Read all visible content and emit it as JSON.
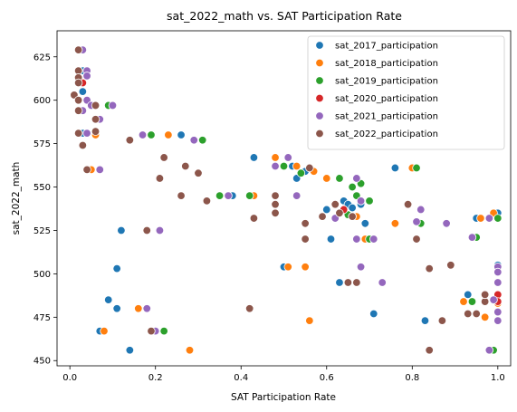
{
  "chart_data": {
    "type": "scatter",
    "title": "sat_2022_math vs. SAT Participation Rate",
    "xlabel": "SAT Participation Rate",
    "ylabel": "sat_2022_math",
    "xlim": [
      -0.03,
      1.03
    ],
    "ylim": [
      447,
      640
    ],
    "xticks": [
      0.0,
      0.2,
      0.4,
      0.6,
      0.8,
      1.0
    ],
    "xtick_labels": [
      "0.0",
      "0.2",
      "0.4",
      "0.6",
      "0.8",
      "1.0"
    ],
    "yticks": [
      450,
      475,
      500,
      525,
      550,
      575,
      600,
      625
    ],
    "ytick_labels": [
      "450",
      "475",
      "500",
      "525",
      "550",
      "575",
      "600",
      "625"
    ],
    "grid": false,
    "legend_position": "top-right",
    "series": [
      {
        "name": "sat_2017_participation",
        "color": "#1f77b4",
        "points": [
          [
            0.02,
            629
          ],
          [
            0.03,
            617
          ],
          [
            0.02,
            613
          ],
          [
            0.03,
            610
          ],
          [
            0.03,
            605
          ],
          [
            0.02,
            594
          ],
          [
            0.03,
            581
          ],
          [
            0.05,
            560
          ],
          [
            0.07,
            467
          ],
          [
            0.09,
            485
          ],
          [
            0.11,
            480
          ],
          [
            0.11,
            503
          ],
          [
            0.12,
            525
          ],
          [
            0.14,
            456
          ],
          [
            0.26,
            580
          ],
          [
            0.38,
            545
          ],
          [
            0.43,
            567
          ],
          [
            0.5,
            504
          ],
          [
            0.52,
            562
          ],
          [
            0.53,
            555
          ],
          [
            0.55,
            559
          ],
          [
            0.6,
            537
          ],
          [
            0.63,
            495
          ],
          [
            0.61,
            520
          ],
          [
            0.64,
            542
          ],
          [
            0.65,
            534
          ],
          [
            0.65,
            540
          ],
          [
            0.66,
            538
          ],
          [
            0.68,
            540
          ],
          [
            0.69,
            529
          ],
          [
            0.71,
            477
          ],
          [
            0.76,
            561
          ],
          [
            0.83,
            473
          ],
          [
            0.93,
            488
          ],
          [
            0.95,
            532
          ],
          [
            1.0,
            535
          ],
          [
            1.0,
            483
          ],
          [
            1.0,
            505
          ]
        ]
      },
      {
        "name": "sat_2018_participation",
        "color": "#ff7f0e",
        "points": [
          [
            0.03,
            574
          ],
          [
            0.04,
            600
          ],
          [
            0.05,
            560
          ],
          [
            0.06,
            580
          ],
          [
            0.08,
            467
          ],
          [
            0.16,
            480
          ],
          [
            0.23,
            580
          ],
          [
            0.28,
            456
          ],
          [
            0.43,
            545
          ],
          [
            0.48,
            567
          ],
          [
            0.51,
            504
          ],
          [
            0.53,
            562
          ],
          [
            0.55,
            504
          ],
          [
            0.56,
            473
          ],
          [
            0.57,
            559
          ],
          [
            0.6,
            555
          ],
          [
            0.64,
            537
          ],
          [
            0.65,
            495
          ],
          [
            0.67,
            533
          ],
          [
            0.69,
            520
          ],
          [
            0.76,
            529
          ],
          [
            0.8,
            561
          ],
          [
            0.92,
            484
          ],
          [
            0.96,
            532
          ],
          [
            0.97,
            475
          ],
          [
            0.99,
            535
          ],
          [
            1.0,
            483
          ],
          [
            1.0,
            478
          ]
        ]
      },
      {
        "name": "sat_2019_participation",
        "color": "#2ca02c",
        "points": [
          [
            0.02,
            617
          ],
          [
            0.03,
            610
          ],
          [
            0.04,
            614
          ],
          [
            0.05,
            597
          ],
          [
            0.09,
            597
          ],
          [
            0.18,
            525
          ],
          [
            0.19,
            580
          ],
          [
            0.22,
            467
          ],
          [
            0.31,
            577
          ],
          [
            0.35,
            545
          ],
          [
            0.42,
            545
          ],
          [
            0.5,
            562
          ],
          [
            0.54,
            558
          ],
          [
            0.63,
            555
          ],
          [
            0.65,
            534
          ],
          [
            0.66,
            550
          ],
          [
            0.66,
            533
          ],
          [
            0.67,
            545
          ],
          [
            0.68,
            552
          ],
          [
            0.7,
            520
          ],
          [
            0.7,
            542
          ],
          [
            0.81,
            561
          ],
          [
            0.82,
            529
          ],
          [
            0.94,
            484
          ],
          [
            0.95,
            521
          ],
          [
            0.99,
            456
          ],
          [
            1.0,
            532
          ],
          [
            1.0,
            488
          ]
        ]
      },
      {
        "name": "sat_2020_participation",
        "color": "#d62728",
        "points": [
          [
            0.02,
            613
          ],
          [
            0.03,
            610
          ],
          [
            0.64,
            537
          ],
          [
            1.0,
            488
          ],
          [
            1.0,
            484
          ]
        ]
      },
      {
        "name": "sat_2021_participation",
        "color": "#9467bd",
        "points": [
          [
            0.03,
            629
          ],
          [
            0.04,
            617
          ],
          [
            0.04,
            614
          ],
          [
            0.04,
            600
          ],
          [
            0.03,
            594
          ],
          [
            0.05,
            597
          ],
          [
            0.07,
            589
          ],
          [
            0.04,
            581
          ],
          [
            0.07,
            560
          ],
          [
            0.1,
            597
          ],
          [
            0.17,
            580
          ],
          [
            0.18,
            480
          ],
          [
            0.2,
            467
          ],
          [
            0.21,
            525
          ],
          [
            0.29,
            577
          ],
          [
            0.37,
            545
          ],
          [
            0.48,
            562
          ],
          [
            0.51,
            567
          ],
          [
            0.53,
            545
          ],
          [
            0.62,
            532
          ],
          [
            0.67,
            555
          ],
          [
            0.67,
            520
          ],
          [
            0.68,
            504
          ],
          [
            0.68,
            542
          ],
          [
            0.71,
            520
          ],
          [
            0.73,
            495
          ],
          [
            0.81,
            530
          ],
          [
            0.82,
            537
          ],
          [
            0.88,
            529
          ],
          [
            0.94,
            521
          ],
          [
            0.98,
            532
          ],
          [
            0.98,
            456
          ],
          [
            1.0,
            504
          ],
          [
            1.0,
            501
          ],
          [
            1.0,
            495
          ],
          [
            1.0,
            478
          ],
          [
            1.0,
            473
          ],
          [
            0.99,
            485
          ]
        ]
      },
      {
        "name": "sat_2022_participation",
        "color": "#8c564b",
        "points": [
          [
            0.02,
            629
          ],
          [
            0.02,
            617
          ],
          [
            0.02,
            613
          ],
          [
            0.02,
            610
          ],
          [
            0.01,
            603
          ],
          [
            0.02,
            600
          ],
          [
            0.02,
            594
          ],
          [
            0.02,
            581
          ],
          [
            0.03,
            574
          ],
          [
            0.04,
            560
          ],
          [
            0.06,
            597
          ],
          [
            0.06,
            589
          ],
          [
            0.06,
            582
          ],
          [
            0.14,
            577
          ],
          [
            0.18,
            525
          ],
          [
            0.19,
            467
          ],
          [
            0.21,
            555
          ],
          [
            0.22,
            567
          ],
          [
            0.26,
            545
          ],
          [
            0.27,
            562
          ],
          [
            0.3,
            558
          ],
          [
            0.32,
            542
          ],
          [
            0.42,
            480
          ],
          [
            0.43,
            532
          ],
          [
            0.48,
            545
          ],
          [
            0.48,
            540
          ],
          [
            0.48,
            535
          ],
          [
            0.55,
            529
          ],
          [
            0.55,
            520
          ],
          [
            0.56,
            561
          ],
          [
            0.59,
            533
          ],
          [
            0.62,
            540
          ],
          [
            0.63,
            535
          ],
          [
            0.65,
            495
          ],
          [
            0.66,
            533
          ],
          [
            0.67,
            495
          ],
          [
            0.79,
            540
          ],
          [
            0.81,
            520
          ],
          [
            0.84,
            456
          ],
          [
            0.84,
            503
          ],
          [
            0.87,
            473
          ],
          [
            0.89,
            505
          ],
          [
            0.93,
            477
          ],
          [
            0.95,
            477
          ],
          [
            0.97,
            484
          ],
          [
            0.97,
            488
          ]
        ]
      }
    ]
  }
}
